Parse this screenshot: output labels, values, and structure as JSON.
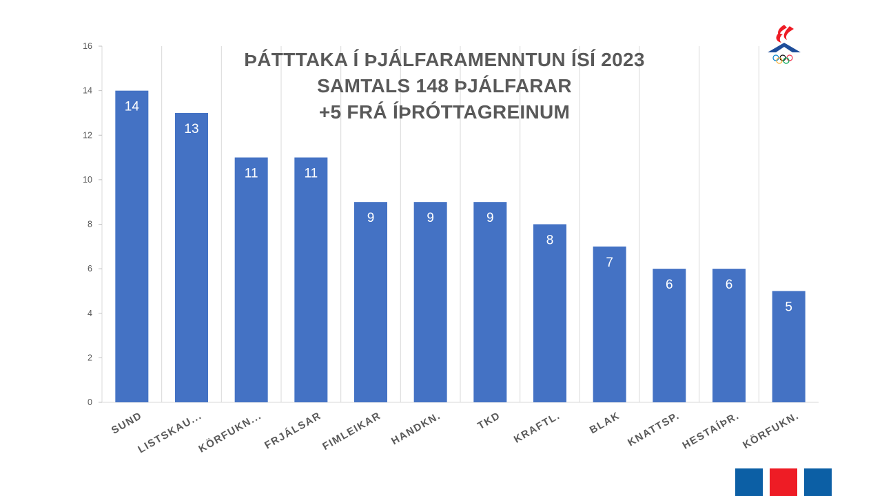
{
  "title_lines": [
    "ÞÁTTTAKA Í ÞJÁLFARAMENNTUN ÍSÍ 2023",
    "SAMTALS 148 ÞJÁLFARAR",
    "+5 FRÁ ÍÞRÓTTAGREINUM"
  ],
  "colors": {
    "bar": "#4472C4",
    "footer": [
      "#0C5FA5",
      "#EE1C25",
      "#0C5FA5"
    ]
  },
  "logo": {
    "icon": "isi-olympic-logo-icon"
  },
  "chart_data": {
    "type": "bar",
    "title": "ÞÁTTTAKA Í ÞJÁLFARAMENNTUN ÍSÍ 2023",
    "categories": [
      "SUND",
      "LISTSKAU...",
      "KÖRFUKN...",
      "FRJÁLSAR",
      "FIMLEIKAR",
      "HANDKN.",
      "TKD",
      "KRAFTL.",
      "BLAK",
      "KNATTSP.",
      "HESTAÍÞR.",
      "KÖRFUKN."
    ],
    "values": [
      14,
      13,
      11,
      11,
      9,
      9,
      9,
      8,
      7,
      6,
      6,
      5
    ],
    "yticks": [
      "0",
      "2",
      "4",
      "6",
      "8",
      "10",
      "12",
      "14",
      "16"
    ],
    "ylim": [
      0,
      16
    ],
    "grid": "vertical",
    "legend": "none",
    "data_labels": "inside-top"
  }
}
